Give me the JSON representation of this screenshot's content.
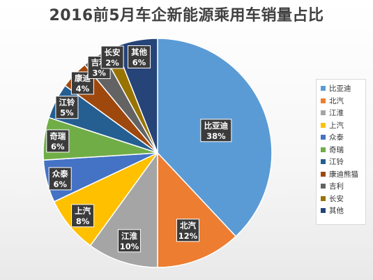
{
  "chart_data": {
    "type": "pie",
    "title": "2016前5月车企新能源乘用车销量占比",
    "slices": [
      {
        "category": "比亚迪",
        "label": "比亚迪",
        "value": 38,
        "value_label": "38%",
        "color": "#5B9BD5"
      },
      {
        "category": "北汽",
        "label": "北汽",
        "value": 12,
        "value_label": "12%",
        "color": "#ED7D31"
      },
      {
        "category": "江淮",
        "label": "江淮",
        "value": 10,
        "value_label": "10%",
        "color": "#A5A5A5"
      },
      {
        "category": "上汽",
        "label": "上汽",
        "value": 8,
        "value_label": "8%",
        "color": "#FFC000"
      },
      {
        "category": "众泰",
        "label": "众泰",
        "value": 6,
        "value_label": "6%",
        "color": "#4472C4"
      },
      {
        "category": "奇瑞",
        "label": "奇瑞",
        "value": 6,
        "value_label": "6%",
        "color": "#70AD47"
      },
      {
        "category": "江铃",
        "label": "江铃",
        "value": 5,
        "value_label": "5%",
        "color": "#255E91"
      },
      {
        "category": "康迪熊猫",
        "label": "康迪",
        "value": 4,
        "value_label": "4%",
        "color": "#9E480E"
      },
      {
        "category": "吉利",
        "label": "吉利",
        "value": 3,
        "value_label": "3%",
        "color": "#636363"
      },
      {
        "category": "长安",
        "label": "长安",
        "value": 2,
        "value_label": "2%",
        "color": "#997300"
      },
      {
        "category": "其他",
        "label": "其他",
        "value": 6,
        "value_label": "6%",
        "color": "#264478"
      }
    ],
    "legend_position": "right",
    "start_angle_deg": 0,
    "direction": "clockwise"
  }
}
